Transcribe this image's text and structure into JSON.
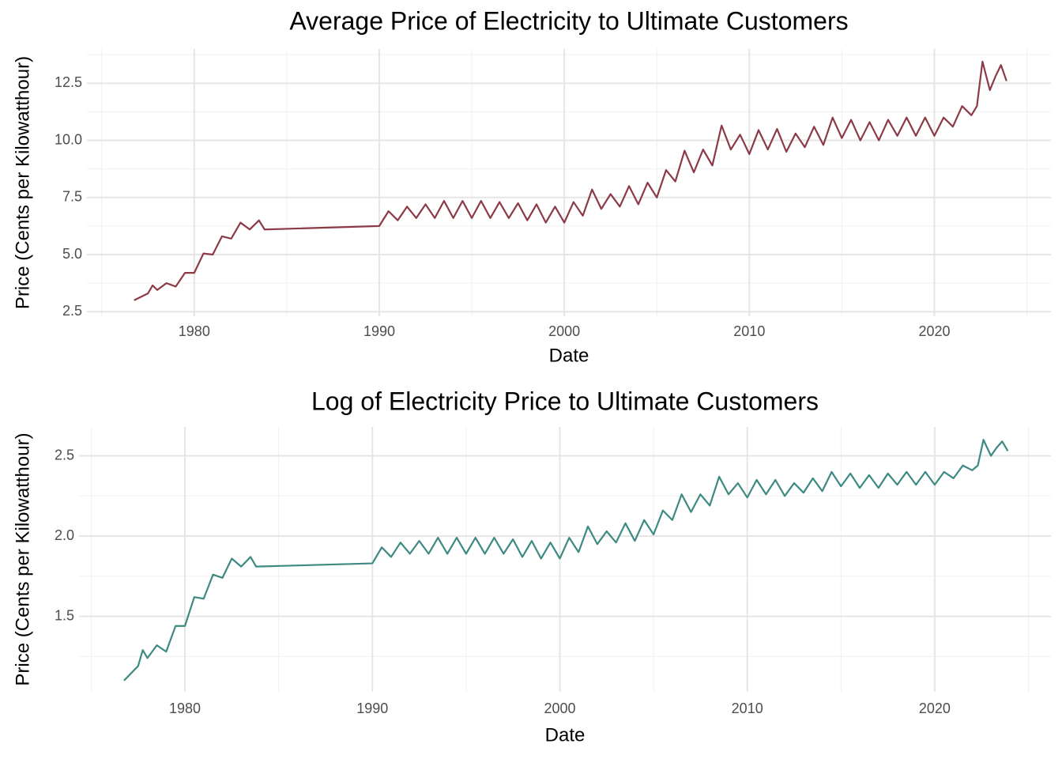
{
  "chart_data": [
    {
      "type": "line",
      "title": "Average Price of Electricity to Ultimate Customers",
      "x_label": "Date",
      "y_label": "Price (Cents per Kilowatthour)",
      "color": "#8b3a46",
      "grid": true,
      "x": [
        1976.75,
        1977.0,
        1977.5,
        1977.75,
        1978.0,
        1978.5,
        1979.0,
        1979.5,
        1980.0,
        1980.5,
        1981.0,
        1981.5,
        1982.0,
        1982.5,
        1983.0,
        1983.5,
        1983.8,
        1990.0,
        1990.5,
        1991.0,
        1991.5,
        1992.0,
        1992.5,
        1993.0,
        1993.5,
        1994.0,
        1994.5,
        1995.0,
        1995.5,
        1996.0,
        1996.5,
        1997.0,
        1997.5,
        1998.0,
        1998.5,
        1999.0,
        1999.5,
        2000.0,
        2000.5,
        2001.0,
        2001.5,
        2002.0,
        2002.5,
        2003.0,
        2003.5,
        2004.0,
        2004.5,
        2005.0,
        2005.5,
        2006.0,
        2006.5,
        2007.0,
        2007.5,
        2008.0,
        2008.5,
        2009.0,
        2009.5,
        2010.0,
        2010.5,
        2011.0,
        2011.5,
        2012.0,
        2012.5,
        2013.0,
        2013.5,
        2014.0,
        2014.5,
        2015.0,
        2015.5,
        2016.0,
        2016.5,
        2017.0,
        2017.5,
        2018.0,
        2018.5,
        2019.0,
        2019.5,
        2020.0,
        2020.5,
        2021.0,
        2021.5,
        2022.0,
        2022.3,
        2022.6,
        2023.0,
        2023.3,
        2023.6,
        2023.9
      ],
      "values": [
        3.0,
        3.1,
        3.3,
        3.65,
        3.45,
        3.75,
        3.6,
        4.2,
        4.2,
        5.05,
        5.0,
        5.8,
        5.7,
        6.4,
        6.1,
        6.5,
        6.1,
        6.25,
        6.9,
        6.5,
        7.1,
        6.6,
        7.2,
        6.6,
        7.35,
        6.6,
        7.35,
        6.6,
        7.35,
        6.6,
        7.3,
        6.6,
        7.25,
        6.5,
        7.2,
        6.4,
        7.1,
        6.4,
        7.3,
        6.7,
        7.85,
        7.0,
        7.65,
        7.1,
        8.0,
        7.2,
        8.15,
        7.5,
        8.7,
        8.2,
        9.55,
        8.6,
        9.6,
        8.9,
        10.65,
        9.6,
        10.25,
        9.4,
        10.45,
        9.6,
        10.5,
        9.5,
        10.3,
        9.7,
        10.6,
        9.8,
        11.0,
        10.1,
        10.9,
        10.0,
        10.8,
        10.0,
        10.9,
        10.2,
        11.0,
        10.2,
        11.0,
        10.2,
        11.0,
        10.6,
        11.5,
        11.1,
        11.5,
        13.45,
        12.2,
        12.8,
        13.3,
        12.6
      ],
      "xlim": [
        1974.2,
        2026.3
      ],
      "xticks": [
        1980,
        1990,
        2000,
        2010,
        2020
      ],
      "ylim": [
        2.3,
        14
      ],
      "yticks": [
        2.5,
        {
          "value": 5,
          "label": "5.0"
        },
        7.5,
        {
          "value": 10,
          "label": "10.0"
        },
        12.5
      ]
    },
    {
      "type": "line",
      "title": "Log of Electricity Price to Ultimate Customers",
      "x_label": "Date",
      "y_label": "Price (Cents per Kilowatthour)",
      "color": "#3d8a82",
      "grid": true,
      "x": [
        1976.75,
        1977.0,
        1977.5,
        1977.75,
        1978.0,
        1978.5,
        1979.0,
        1979.5,
        1980.0,
        1980.5,
        1981.0,
        1981.5,
        1982.0,
        1982.5,
        1983.0,
        1983.5,
        1983.8,
        1990.0,
        1990.5,
        1991.0,
        1991.5,
        1992.0,
        1992.5,
        1993.0,
        1993.5,
        1994.0,
        1994.5,
        1995.0,
        1995.5,
        1996.0,
        1996.5,
        1997.0,
        1997.5,
        1998.0,
        1998.5,
        1999.0,
        1999.5,
        2000.0,
        2000.5,
        2001.0,
        2001.5,
        2002.0,
        2002.5,
        2003.0,
        2003.5,
        2004.0,
        2004.5,
        2005.0,
        2005.5,
        2006.0,
        2006.5,
        2007.0,
        2007.5,
        2008.0,
        2008.5,
        2009.0,
        2009.5,
        2010.0,
        2010.5,
        2011.0,
        2011.5,
        2012.0,
        2012.5,
        2013.0,
        2013.5,
        2014.0,
        2014.5,
        2015.0,
        2015.5,
        2016.0,
        2016.5,
        2017.0,
        2017.5,
        2018.0,
        2018.5,
        2019.0,
        2019.5,
        2020.0,
        2020.5,
        2021.0,
        2021.5,
        2022.0,
        2022.3,
        2022.6,
        2023.0,
        2023.3,
        2023.6,
        2023.9
      ],
      "values": [
        1.1,
        1.13,
        1.19,
        1.29,
        1.24,
        1.32,
        1.28,
        1.44,
        1.44,
        1.62,
        1.61,
        1.76,
        1.74,
        1.86,
        1.81,
        1.87,
        1.81,
        1.83,
        1.93,
        1.87,
        1.96,
        1.89,
        1.97,
        1.89,
        1.99,
        1.89,
        1.99,
        1.89,
        1.99,
        1.89,
        1.99,
        1.89,
        1.98,
        1.87,
        1.97,
        1.86,
        1.96,
        1.86,
        1.99,
        1.9,
        2.06,
        1.95,
        2.03,
        1.96,
        2.08,
        1.97,
        2.1,
        2.01,
        2.16,
        2.1,
        2.26,
        2.15,
        2.26,
        2.19,
        2.37,
        2.26,
        2.33,
        2.24,
        2.35,
        2.26,
        2.35,
        2.25,
        2.33,
        2.27,
        2.36,
        2.28,
        2.4,
        2.31,
        2.39,
        2.3,
        2.38,
        2.3,
        2.39,
        2.32,
        2.4,
        2.32,
        2.4,
        2.32,
        2.4,
        2.36,
        2.44,
        2.41,
        2.44,
        2.6,
        2.5,
        2.55,
        2.59,
        2.53
      ],
      "xlim": [
        1974.35,
        2026.2
      ],
      "xticks": [
        1980,
        1990,
        2000,
        2010,
        2020
      ],
      "ylim": [
        1.03,
        2.68
      ],
      "yticks": [
        1.5,
        {
          "value": 2,
          "label": "2.0"
        },
        2.5
      ]
    }
  ]
}
